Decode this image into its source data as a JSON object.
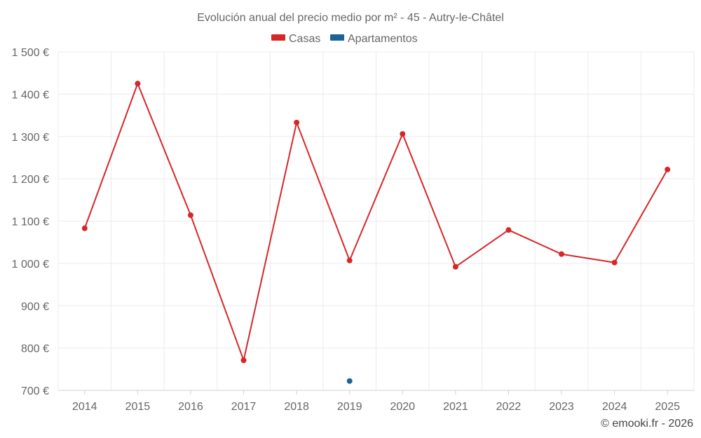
{
  "chart_data": {
    "type": "line",
    "title": "Evolución anual del precio medio por m² - 45 - Autry-le-Châtel",
    "x": [
      "2014",
      "2015",
      "2016",
      "2017",
      "2018",
      "2019",
      "2020",
      "2021",
      "2022",
      "2023",
      "2024",
      "2025"
    ],
    "yticks": [
      "700 €",
      "800 €",
      "900 €",
      "1 000 €",
      "1 100 €",
      "1 200 €",
      "1 300 €",
      "1 400 €",
      "1 500 €"
    ],
    "ylim": [
      700,
      1500
    ],
    "grid": true,
    "legend_position": "top",
    "series": [
      {
        "name": "Casas",
        "color": "#d62728",
        "values": [
          1083,
          1425,
          1114,
          771,
          1333,
          1007,
          1306,
          992,
          1079,
          1022,
          1002,
          1222
        ]
      },
      {
        "name": "Apartamentos",
        "color": "#1a6396",
        "values": [
          null,
          null,
          null,
          null,
          null,
          722,
          null,
          null,
          null,
          null,
          null,
          null
        ]
      }
    ]
  },
  "credit": "© emooki.fr - 2026"
}
